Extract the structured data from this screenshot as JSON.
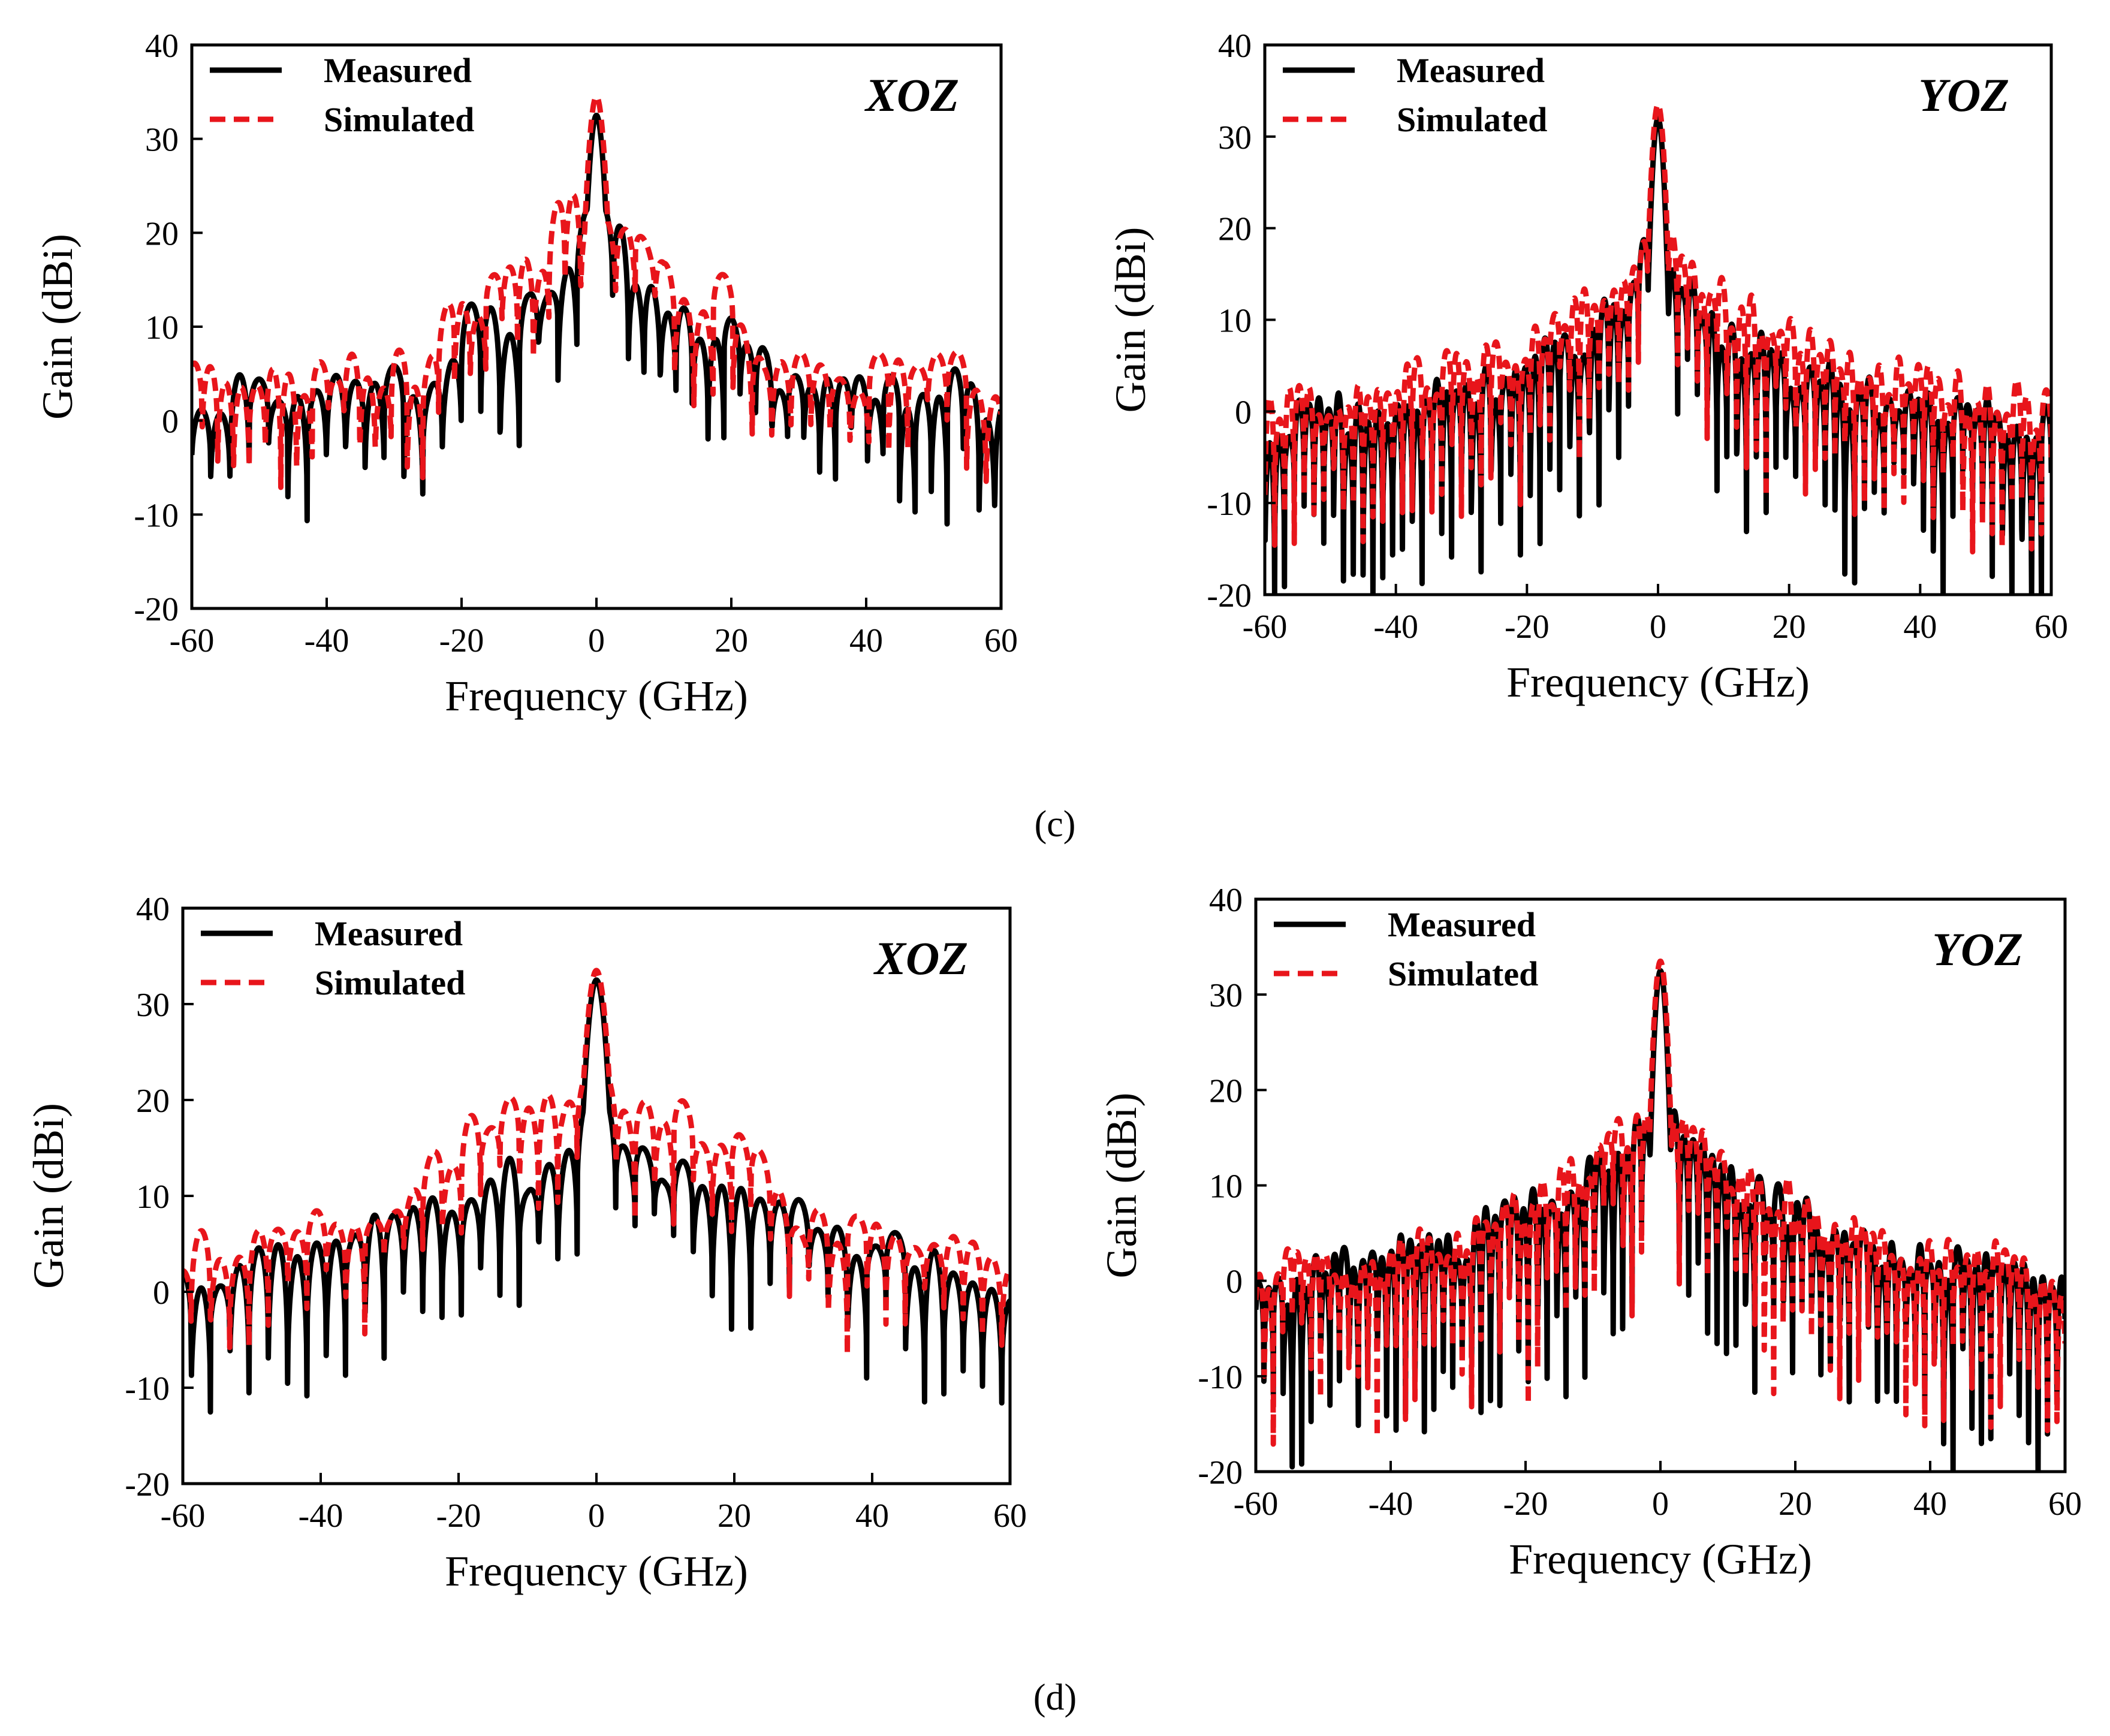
{
  "colors": {
    "measured": "#000000",
    "simulated": "#e8151b",
    "axis": "#000000",
    "background": "#ffffff"
  },
  "captions": [
    "(c)",
    "(d)"
  ],
  "chart_data": [
    {
      "id": "c-xoz",
      "type": "line",
      "plane_label": "XOZ",
      "xlabel": "Frequency (GHz)",
      "ylabel": "Gain (dBi)",
      "xlim": [
        -60,
        60
      ],
      "ylim": [
        -20,
        40
      ],
      "xticks": [
        "-60",
        "-40",
        "-20",
        "0",
        "20",
        "40",
        "60"
      ],
      "yticks": [
        "-20",
        "-10",
        "0",
        "10",
        "20",
        "30",
        "40"
      ],
      "legend_position": "top-left",
      "series": [
        {
          "name": "Measured",
          "style": "solid",
          "seed": 11,
          "peak": 32.5,
          "mainWidth": 1.5,
          "sideEnv": [
            [
              0,
              22
            ],
            [
              5,
              17
            ],
            [
              10,
              12
            ],
            [
              20,
              10
            ],
            [
              25,
              5
            ],
            [
              40,
              4
            ],
            [
              55,
              3
            ],
            [
              60,
              2
            ]
          ],
          "sideDepth": 12,
          "period": 2.6,
          "asym": 1.1,
          "floor": -16
        },
        {
          "name": "Simulated",
          "style": "dashed",
          "seed": 29,
          "peak": 34.5,
          "mainWidth": 1.6,
          "sideEnv": [
            [
              0,
              24
            ],
            [
              5,
              22
            ],
            [
              10,
              15
            ],
            [
              20,
              13
            ],
            [
              25,
              6
            ],
            [
              40,
              5
            ],
            [
              55,
              5
            ],
            [
              60,
              4
            ]
          ],
          "sideDepth": 10,
          "period": 2.6,
          "asym": 0.9,
          "floor": -16
        }
      ]
    },
    {
      "id": "c-yoz",
      "type": "line",
      "plane_label": "YOZ",
      "xlabel": "Frequency (GHz)",
      "ylabel": "Gain (dBi)",
      "xlim": [
        -60,
        60
      ],
      "ylim": [
        -20,
        40
      ],
      "xticks": [
        "-60",
        "-40",
        "-20",
        "0",
        "20",
        "40",
        "60"
      ],
      "yticks": [
        "-20",
        "-10",
        "0",
        "10",
        "20",
        "30",
        "40"
      ],
      "legend_position": "top-left",
      "series": [
        {
          "name": "Measured",
          "style": "solid",
          "seed": 41,
          "peak": 32,
          "mainWidth": 1.2,
          "sideEnv": [
            [
              0,
              20
            ],
            [
              5,
              13
            ],
            [
              10,
              8
            ],
            [
              20,
              5
            ],
            [
              30,
              2
            ],
            [
              40,
              1
            ],
            [
              55,
              -1
            ],
            [
              60,
              -2
            ]
          ],
          "sideDepth": 16,
          "period": 1.5,
          "asym": 1.0,
          "floor": -20
        },
        {
          "name": "Simulated",
          "style": "dashed",
          "seed": 57,
          "peak": 33.5,
          "mainWidth": 1.3,
          "sideEnv": [
            [
              0,
              24
            ],
            [
              5,
              16
            ],
            [
              10,
              12
            ],
            [
              20,
              8
            ],
            [
              30,
              5
            ],
            [
              40,
              3
            ],
            [
              55,
              1
            ],
            [
              60,
              0
            ]
          ],
          "sideDepth": 14,
          "period": 1.5,
          "asym": 1.0,
          "floor": -20
        }
      ]
    },
    {
      "id": "d-xoz",
      "type": "line",
      "plane_label": "XOZ",
      "xlabel": "Frequency (GHz)",
      "ylabel": "Gain (dBi)",
      "xlim": [
        -60,
        60
      ],
      "ylim": [
        -20,
        40
      ],
      "xticks": [
        "-60",
        "-40",
        "-20",
        "0",
        "20",
        "40",
        "60"
      ],
      "yticks": [
        "-20",
        "-10",
        "0",
        "10",
        "20",
        "30",
        "40"
      ],
      "legend_position": "top-left",
      "series": [
        {
          "name": "Measured",
          "style": "solid",
          "seed": 73,
          "peak": 32.5,
          "mainWidth": 1.8,
          "sideEnv": [
            [
              0,
              22
            ],
            [
              5,
              16
            ],
            [
              10,
              12
            ],
            [
              20,
              10
            ],
            [
              30,
              8
            ],
            [
              40,
              5
            ],
            [
              55,
              2
            ],
            [
              60,
              0
            ]
          ],
          "sideDepth": 12,
          "period": 2.8,
          "asym": 1.0,
          "floor": -20
        },
        {
          "name": "Simulated",
          "style": "dashed",
          "seed": 89,
          "peak": 33.5,
          "mainWidth": 1.9,
          "sideEnv": [
            [
              0,
              25
            ],
            [
              5,
              20
            ],
            [
              10,
              20
            ],
            [
              20,
              16
            ],
            [
              30,
              7
            ],
            [
              40,
              6
            ],
            [
              55,
              5
            ],
            [
              60,
              3
            ]
          ],
          "sideDepth": 9,
          "period": 2.8,
          "asym": 1.0,
          "floor": -20
        }
      ]
    },
    {
      "id": "d-yoz",
      "type": "line",
      "plane_label": "YOZ",
      "xlabel": "Frequency (GHz)",
      "ylabel": "Gain (dBi)",
      "xlim": [
        -60,
        60
      ],
      "ylim": [
        -20,
        40
      ],
      "xticks": [
        "-60",
        "-40",
        "-20",
        "0",
        "20",
        "40",
        "60"
      ],
      "yticks": [
        "-20",
        "-10",
        "0",
        "10",
        "20",
        "30",
        "40"
      ],
      "legend_position": "top-left",
      "series": [
        {
          "name": "Measured",
          "style": "solid",
          "seed": 103,
          "peak": 32.5,
          "mainWidth": 1.2,
          "sideEnv": [
            [
              0,
              20
            ],
            [
              5,
              15
            ],
            [
              10,
              11
            ],
            [
              20,
              7
            ],
            [
              30,
              4
            ],
            [
              40,
              2
            ],
            [
              55,
              0
            ],
            [
              60,
              -1
            ]
          ],
          "sideDepth": 16,
          "period": 1.4,
          "asym": 1.0,
          "floor": -20
        },
        {
          "name": "Simulated",
          "style": "dashed",
          "seed": 127,
          "peak": 33.5,
          "mainWidth": 1.3,
          "sideEnv": [
            [
              0,
              20
            ],
            [
              5,
              16
            ],
            [
              10,
              12
            ],
            [
              20,
              8
            ],
            [
              30,
              5
            ],
            [
              40,
              3
            ],
            [
              55,
              1
            ],
            [
              60,
              -1
            ]
          ],
          "sideDepth": 15,
          "period": 1.4,
          "asym": 1.0,
          "floor": -20
        }
      ]
    }
  ]
}
